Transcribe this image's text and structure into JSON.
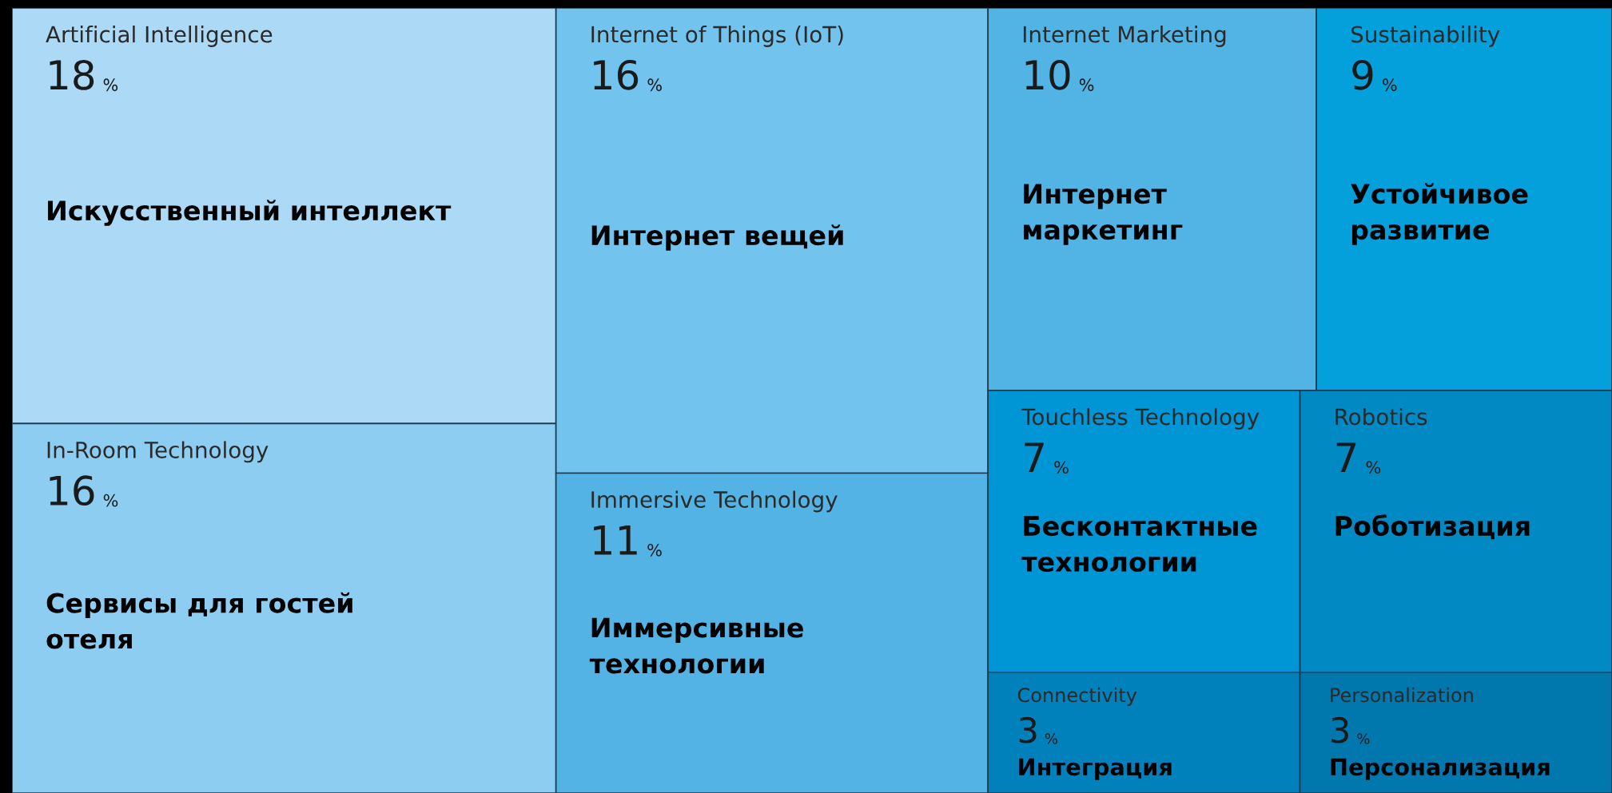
{
  "chart_data": {
    "type": "other",
    "categories": [
      "Artificial Intelligence",
      "In-Room Technology",
      "Internet of Things (IoT)",
      "Immersive Technology",
      "Internet Marketing",
      "Sustainability",
      "Touchless Technology",
      "Connectivity",
      "Robotics",
      "Personalization"
    ],
    "values": [
      18,
      16,
      16,
      11,
      10,
      9,
      7,
      3,
      7,
      3
    ],
    "value_labels": [
      "18 %",
      "16 %",
      "16 %",
      "11 %",
      "10 %",
      "9 %",
      "7 %",
      "3 %",
      "7 %",
      "3 %"
    ],
    "colors": [
      "#acd9f6",
      "#8ecdf2",
      "#72c3ee",
      "#54b3e5",
      "#52b3e5",
      "#03a0db",
      "#0095d4",
      "#0081bb",
      "#0089c3",
      "#0077ad"
    ],
    "annotations": [
      "Искусственный интеллект",
      "Сервисы для гостей\nотеля",
      "Интернет вещей",
      "Иммерсивные\nтехнологии",
      "Интернет\nмаркетинг",
      "Устойчивое\nразвитие",
      "Бесконтактные\nтехнологии",
      "Интеграция",
      "Роботизация",
      "Персонализация"
    ]
  }
}
